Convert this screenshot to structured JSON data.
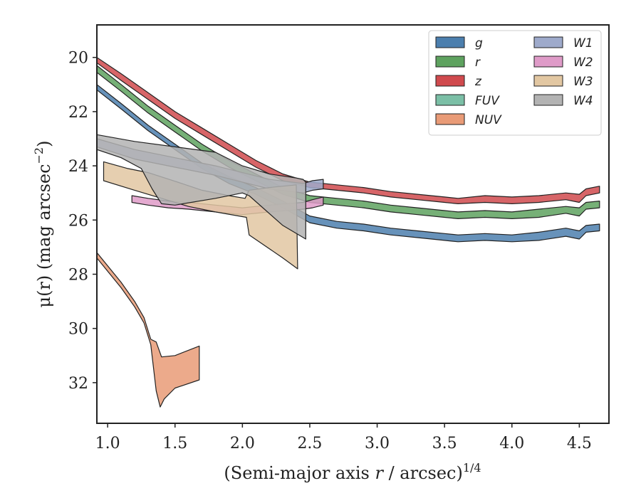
{
  "chart_data": {
    "type": "area",
    "xlabel_main": "(Semi-major axis ",
    "xlabel_var": "r",
    "xlabel_tail": " / arcsec)",
    "xlabel_sup": "1/4",
    "ylabel_main": "μ(r) (mag arcsec",
    "ylabel_sup": "−2",
    "ylabel_tail": ")",
    "xlim": [
      0.92,
      4.72
    ],
    "ylim": [
      33.5,
      18.8
    ],
    "y_inverted": true,
    "xticks": [
      1.0,
      1.5,
      2.0,
      2.5,
      3.0,
      3.5,
      4.0,
      4.5
    ],
    "xtick_labels": [
      "1.0",
      "1.5",
      "2.0",
      "2.5",
      "3.0",
      "3.5",
      "4.0",
      "4.5"
    ],
    "yticks": [
      20,
      22,
      24,
      26,
      28,
      30,
      32
    ],
    "ytick_labels": [
      "20",
      "22",
      "24",
      "26",
      "28",
      "30",
      "32"
    ],
    "legend_position": "top-right",
    "legend_columns": 2,
    "series": [
      {
        "name": "g",
        "color": "#4c7fae",
        "upper": [
          [
            0.92,
            21.0
          ],
          [
            1.1,
            21.7
          ],
          [
            1.3,
            22.5
          ],
          [
            1.5,
            23.2
          ],
          [
            1.7,
            23.9
          ],
          [
            1.9,
            24.4
          ],
          [
            2.1,
            24.8
          ],
          [
            2.3,
            25.3
          ],
          [
            2.5,
            25.85
          ],
          [
            2.7,
            26.05
          ],
          [
            2.9,
            26.15
          ],
          [
            3.1,
            26.3
          ],
          [
            3.3,
            26.4
          ],
          [
            3.5,
            26.5
          ],
          [
            3.6,
            26.55
          ],
          [
            3.8,
            26.5
          ],
          [
            4.0,
            26.55
          ],
          [
            4.2,
            26.45
          ],
          [
            4.4,
            26.3
          ],
          [
            4.5,
            26.4
          ],
          [
            4.55,
            26.2
          ],
          [
            4.65,
            26.15
          ]
        ],
        "lower": [
          [
            4.65,
            26.4
          ],
          [
            4.55,
            26.45
          ],
          [
            4.5,
            26.7
          ],
          [
            4.4,
            26.6
          ],
          [
            4.2,
            26.75
          ],
          [
            4.0,
            26.8
          ],
          [
            3.8,
            26.75
          ],
          [
            3.6,
            26.8
          ],
          [
            3.5,
            26.75
          ],
          [
            3.3,
            26.65
          ],
          [
            3.1,
            26.55
          ],
          [
            2.9,
            26.4
          ],
          [
            2.7,
            26.3
          ],
          [
            2.5,
            26.1
          ],
          [
            2.3,
            25.55
          ],
          [
            2.1,
            25.05
          ],
          [
            1.9,
            24.65
          ],
          [
            1.7,
            24.1
          ],
          [
            1.5,
            23.4
          ],
          [
            1.3,
            22.7
          ],
          [
            1.1,
            21.9
          ],
          [
            0.92,
            21.2
          ]
        ]
      },
      {
        "name": "r",
        "color": "#5ea25f",
        "upper": [
          [
            0.92,
            20.3
          ],
          [
            1.1,
            21.0
          ],
          [
            1.3,
            21.8
          ],
          [
            1.5,
            22.5
          ],
          [
            1.7,
            23.2
          ],
          [
            1.9,
            23.8
          ],
          [
            2.1,
            24.3
          ],
          [
            2.3,
            24.8
          ],
          [
            2.5,
            25.1
          ],
          [
            2.7,
            25.2
          ],
          [
            2.9,
            25.3
          ],
          [
            3.1,
            25.45
          ],
          [
            3.3,
            25.55
          ],
          [
            3.5,
            25.65
          ],
          [
            3.6,
            25.7
          ],
          [
            3.8,
            25.65
          ],
          [
            4.0,
            25.7
          ],
          [
            4.2,
            25.6
          ],
          [
            4.4,
            25.5
          ],
          [
            4.5,
            25.55
          ],
          [
            4.55,
            25.35
          ],
          [
            4.65,
            25.3
          ]
        ],
        "lower": [
          [
            4.65,
            25.55
          ],
          [
            4.55,
            25.6
          ],
          [
            4.5,
            25.85
          ],
          [
            4.4,
            25.75
          ],
          [
            4.2,
            25.9
          ],
          [
            4.0,
            25.95
          ],
          [
            3.8,
            25.9
          ],
          [
            3.6,
            25.95
          ],
          [
            3.5,
            25.9
          ],
          [
            3.3,
            25.8
          ],
          [
            3.1,
            25.7
          ],
          [
            2.9,
            25.55
          ],
          [
            2.7,
            25.45
          ],
          [
            2.5,
            25.35
          ],
          [
            2.3,
            25.05
          ],
          [
            2.1,
            24.55
          ],
          [
            1.9,
            24.05
          ],
          [
            1.7,
            23.45
          ],
          [
            1.5,
            22.75
          ],
          [
            1.3,
            22.05
          ],
          [
            1.1,
            21.25
          ],
          [
            0.92,
            20.55
          ]
        ]
      },
      {
        "name": "z",
        "color": "#d04a4e",
        "upper": [
          [
            0.92,
            20.0
          ],
          [
            1.1,
            20.6
          ],
          [
            1.3,
            21.3
          ],
          [
            1.5,
            22.0
          ],
          [
            1.7,
            22.6
          ],
          [
            1.9,
            23.2
          ],
          [
            2.1,
            23.8
          ],
          [
            2.3,
            24.3
          ],
          [
            2.5,
            24.6
          ],
          [
            2.7,
            24.7
          ],
          [
            2.9,
            24.8
          ],
          [
            3.1,
            24.95
          ],
          [
            3.3,
            25.05
          ],
          [
            3.5,
            25.15
          ],
          [
            3.6,
            25.2
          ],
          [
            3.8,
            25.1
          ],
          [
            4.0,
            25.15
          ],
          [
            4.2,
            25.1
          ],
          [
            4.4,
            25.0
          ],
          [
            4.5,
            25.05
          ],
          [
            4.55,
            24.85
          ],
          [
            4.65,
            24.75
          ]
        ],
        "lower": [
          [
            4.65,
            25.0
          ],
          [
            4.55,
            25.1
          ],
          [
            4.5,
            25.35
          ],
          [
            4.4,
            25.25
          ],
          [
            4.2,
            25.35
          ],
          [
            4.0,
            25.4
          ],
          [
            3.8,
            25.35
          ],
          [
            3.6,
            25.4
          ],
          [
            3.5,
            25.35
          ],
          [
            3.3,
            25.25
          ],
          [
            3.1,
            25.15
          ],
          [
            2.9,
            25.0
          ],
          [
            2.7,
            24.9
          ],
          [
            2.5,
            24.8
          ],
          [
            2.3,
            24.55
          ],
          [
            2.1,
            24.05
          ],
          [
            1.9,
            23.45
          ],
          [
            1.7,
            22.85
          ],
          [
            1.5,
            22.25
          ],
          [
            1.3,
            21.55
          ],
          [
            1.1,
            20.85
          ],
          [
            0.92,
            20.2
          ]
        ]
      },
      {
        "name": "FUV",
        "color": "#7bbfa6",
        "upper": [],
        "lower": []
      },
      {
        "name": "NUV",
        "color": "#e99b77",
        "upper": [
          [
            0.92,
            27.2
          ],
          [
            1.1,
            28.3
          ],
          [
            1.2,
            29.0
          ],
          [
            1.27,
            29.6
          ],
          [
            1.32,
            30.4
          ],
          [
            1.36,
            30.5
          ],
          [
            1.4,
            31.05
          ],
          [
            1.5,
            31.0
          ],
          [
            1.68,
            30.65
          ]
        ],
        "lower": [
          [
            1.68,
            31.9
          ],
          [
            1.5,
            32.2
          ],
          [
            1.42,
            32.6
          ],
          [
            1.39,
            32.9
          ],
          [
            1.36,
            32.3
          ],
          [
            1.32,
            30.6
          ],
          [
            1.27,
            29.8
          ],
          [
            1.2,
            29.2
          ],
          [
            1.1,
            28.5
          ],
          [
            0.92,
            27.4
          ]
        ]
      },
      {
        "name": "W1",
        "color": "#9eaacb",
        "upper": [
          [
            0.92,
            23.0
          ],
          [
            1.2,
            23.4
          ],
          [
            1.5,
            23.7
          ],
          [
            1.8,
            24.0
          ],
          [
            2.0,
            24.25
          ],
          [
            2.2,
            24.5
          ],
          [
            2.45,
            24.65
          ],
          [
            2.52,
            24.55
          ],
          [
            2.6,
            24.5
          ]
        ],
        "lower": [
          [
            2.6,
            24.85
          ],
          [
            2.52,
            24.9
          ],
          [
            2.45,
            25.0
          ],
          [
            2.2,
            24.85
          ],
          [
            2.0,
            24.6
          ],
          [
            1.8,
            24.35
          ],
          [
            1.5,
            24.05
          ],
          [
            1.2,
            23.75
          ],
          [
            0.92,
            23.3
          ]
        ]
      },
      {
        "name": "W2",
        "color": "#df9bc8",
        "upper": [
          [
            1.18,
            25.1
          ],
          [
            1.3,
            25.2
          ],
          [
            1.45,
            25.3
          ],
          [
            1.6,
            25.35
          ],
          [
            1.8,
            25.45
          ],
          [
            2.0,
            25.55
          ],
          [
            2.2,
            25.45
          ],
          [
            2.45,
            25.35
          ],
          [
            2.52,
            25.25
          ],
          [
            2.6,
            25.15
          ]
        ],
        "lower": [
          [
            2.6,
            25.45
          ],
          [
            2.52,
            25.55
          ],
          [
            2.45,
            25.6
          ],
          [
            2.2,
            25.7
          ],
          [
            2.0,
            25.8
          ],
          [
            1.8,
            25.7
          ],
          [
            1.6,
            25.6
          ],
          [
            1.45,
            25.55
          ],
          [
            1.3,
            25.45
          ],
          [
            1.18,
            25.35
          ]
        ]
      },
      {
        "name": "W3",
        "color": "#e2c7a2",
        "upper": [
          [
            0.97,
            23.85
          ],
          [
            1.15,
            24.1
          ],
          [
            1.3,
            24.25
          ],
          [
            1.52,
            24.6
          ],
          [
            1.7,
            24.9
          ],
          [
            1.9,
            25.1
          ],
          [
            2.02,
            25.2
          ],
          [
            2.05,
            24.9
          ],
          [
            2.2,
            24.8
          ],
          [
            2.4,
            24.7
          ]
        ],
        "lower": [
          [
            2.41,
            27.8
          ],
          [
            2.3,
            27.4
          ],
          [
            2.05,
            26.55
          ],
          [
            2.03,
            25.9
          ],
          [
            1.8,
            25.7
          ],
          [
            1.6,
            25.5
          ],
          [
            1.4,
            25.2
          ],
          [
            1.2,
            24.9
          ],
          [
            0.97,
            24.55
          ]
        ]
      },
      {
        "name": "W4",
        "color": "#b3b3b3",
        "upper": [
          [
            0.92,
            22.85
          ],
          [
            1.2,
            23.1
          ],
          [
            1.5,
            23.3
          ],
          [
            1.8,
            23.5
          ],
          [
            2.0,
            24.0
          ],
          [
            2.2,
            24.3
          ],
          [
            2.4,
            24.45
          ],
          [
            2.45,
            24.5
          ],
          [
            2.47,
            24.6
          ]
        ],
        "lower": [
          [
            2.47,
            26.7
          ],
          [
            2.3,
            26.2
          ],
          [
            2.05,
            25.1
          ],
          [
            2.0,
            25.0
          ],
          [
            1.8,
            25.2
          ],
          [
            1.5,
            25.45
          ],
          [
            1.4,
            25.4
          ],
          [
            1.33,
            24.85
          ],
          [
            1.25,
            24.1
          ],
          [
            1.1,
            23.7
          ],
          [
            0.92,
            23.4
          ]
        ]
      }
    ]
  }
}
